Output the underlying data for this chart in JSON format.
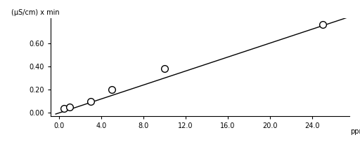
{
  "data_x": [
    0.5,
    1.0,
    3.0,
    5.0,
    10.0,
    25.0
  ],
  "data_y": [
    0.04,
    0.05,
    0.1,
    0.2,
    0.38,
    0.76
  ],
  "line_x_start": -0.3,
  "line_x_end": 27.5,
  "line_slope": 0.0302,
  "line_intercept": -0.002,
  "xlim": [
    -0.8,
    27.5
  ],
  "ylim": [
    -0.03,
    0.82
  ],
  "xticks": [
    0.0,
    4.0,
    8.0,
    12.0,
    16.0,
    20.0,
    24.0
  ],
  "yticks": [
    0.0,
    0.2,
    0.4,
    0.6
  ],
  "xlabel": "ppm",
  "ylabel": "(μS/cm) x min",
  "marker_color": "white",
  "marker_edge_color": "black",
  "line_color": "black",
  "bg_color": "white",
  "marker_size": 7,
  "line_width": 1.0,
  "marker_linewidth": 1.0,
  "tick_fontsize": 7,
  "label_fontsize": 7
}
